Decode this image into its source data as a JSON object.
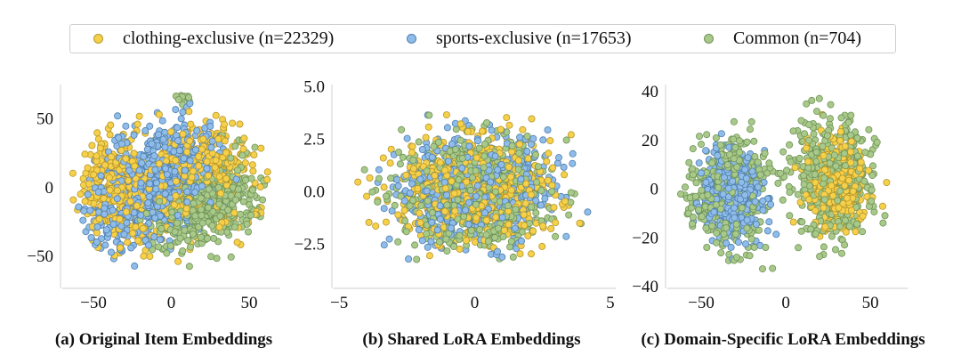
{
  "legend": {
    "items": [
      {
        "label": "clothing-exclusive (n=22329)",
        "color": "#f5d04a",
        "edge": "#b8962a"
      },
      {
        "label": "sports-exclusive (n=17653)",
        "color": "#8fbce8",
        "edge": "#4e7fb0"
      },
      {
        "label": "Common (n=704)",
        "color": "#a9c98a",
        "edge": "#6e9356"
      }
    ]
  },
  "chart_data": [
    {
      "type": "scatter",
      "caption": "(a) Original Item Embeddings",
      "xlim": [
        -70,
        70
      ],
      "ylim": [
        -72,
        75
      ],
      "xticks": [
        -50,
        0,
        50
      ],
      "yticks": [
        -50,
        0,
        50
      ],
      "xticklabels": [
        "−50",
        "0",
        "50"
      ],
      "yticklabels": [
        "−50",
        "0",
        "50"
      ],
      "grid": false,
      "legend_position": "top",
      "series": [
        {
          "name": "clothing-exclusive (n=22329)",
          "color": "#f5d04a",
          "edge": "#b8962a",
          "values": [],
          "clusters": [
            {
              "cx": -30,
              "cy": -2,
              "sx": 22,
              "sy": 24,
              "n": 380
            },
            {
              "cx": 25,
              "cy": 18,
              "sx": 20,
              "sy": 18,
              "n": 220
            },
            {
              "cx": 0,
              "cy": 0,
              "sx": 40,
              "sy": 30,
              "n": 200
            }
          ]
        },
        {
          "name": "sports-exclusive (n=17653)",
          "color": "#8fbce8",
          "edge": "#4e7fb0",
          "values": [],
          "clusters": [
            {
              "cx": -10,
              "cy": 5,
              "sx": 22,
              "sy": 22,
              "n": 520
            },
            {
              "cx": -30,
              "cy": -25,
              "sx": 18,
              "sy": 15,
              "n": 130
            },
            {
              "cx": 10,
              "cy": 30,
              "sx": 18,
              "sy": 15,
              "n": 100
            }
          ]
        },
        {
          "name": "Common (n=704)",
          "color": "#a9c98a",
          "edge": "#6e9356",
          "values": [],
          "clusters": [
            {
              "cx": 28,
              "cy": -10,
              "sx": 17,
              "sy": 18,
              "n": 420
            },
            {
              "cx": 5,
              "cy": -30,
              "sx": 14,
              "sy": 12,
              "n": 80
            },
            {
              "cx": 8,
              "cy": 67,
              "sx": 3,
              "sy": 3,
              "n": 25
            }
          ]
        }
      ]
    },
    {
      "type": "scatter",
      "caption": "(b) Shared LoRA Embeddings",
      "xlim": [
        -5.2,
        5.2
      ],
      "ylim": [
        -4.5,
        5.1
      ],
      "xticks": [
        -5,
        0,
        5
      ],
      "yticks": [
        -2.5,
        0.0,
        2.5,
        5.0
      ],
      "xticklabels": [
        "−5",
        "0",
        "5"
      ],
      "yticklabels": [
        "−2.5",
        "0.0",
        "2.5",
        "5.0"
      ],
      "grid": false,
      "legend_position": "top",
      "series": [
        {
          "name": "clothing-exclusive (n=22329)",
          "color": "#f5d04a",
          "edge": "#b8962a",
          "values": [],
          "clusters": [
            {
              "cx": 0,
              "cy": 0,
              "sx": 1.9,
              "sy": 1.7,
              "n": 550
            }
          ]
        },
        {
          "name": "sports-exclusive (n=17653)",
          "color": "#8fbce8",
          "edge": "#4e7fb0",
          "values": [],
          "clusters": [
            {
              "cx": 0,
              "cy": 0.1,
              "sx": 1.9,
              "sy": 1.7,
              "n": 550
            }
          ]
        },
        {
          "name": "Common (n=704)",
          "color": "#a9c98a",
          "edge": "#6e9356",
          "values": [],
          "clusters": [
            {
              "cx": 0,
              "cy": 0,
              "sx": 1.8,
              "sy": 1.6,
              "n": 650
            }
          ]
        }
      ]
    },
    {
      "type": "scatter",
      "caption": "(c) Domain-Specific LoRA Embeddings",
      "xlim": [
        -70,
        72
      ],
      "ylim": [
        -40,
        43
      ],
      "xticks": [
        -50,
        0,
        50
      ],
      "yticks": [
        -40,
        -20,
        0,
        20,
        40
      ],
      "xticklabels": [
        "−50",
        "0",
        "50"
      ],
      "yticklabels": [
        "−40",
        "−20",
        "0",
        "20",
        "40"
      ],
      "grid": false,
      "legend_position": "top",
      "series": [
        {
          "name": "clothing-exclusive (n=22329)",
          "color": "#f5d04a",
          "edge": "#b8962a",
          "values": [],
          "clusters": [
            {
              "cx": 30,
              "cy": 2,
              "sx": 11,
              "sy": 12,
              "n": 420
            }
          ]
        },
        {
          "name": "sports-exclusive (n=17653)",
          "color": "#8fbce8",
          "edge": "#4e7fb0",
          "values": [],
          "clusters": [
            {
              "cx": -32,
              "cy": -3,
              "sx": 11,
              "sy": 12,
              "n": 420
            }
          ]
        },
        {
          "name": "Common (n=704)",
          "color": "#a9c98a",
          "edge": "#6e9356",
          "values": [],
          "clusters": [
            {
              "cx": -35,
              "cy": -2,
              "sx": 17,
              "sy": 16,
              "n": 450
            },
            {
              "cx": 28,
              "cy": 5,
              "sx": 17,
              "sy": 16,
              "n": 450
            }
          ]
        }
      ]
    }
  ]
}
